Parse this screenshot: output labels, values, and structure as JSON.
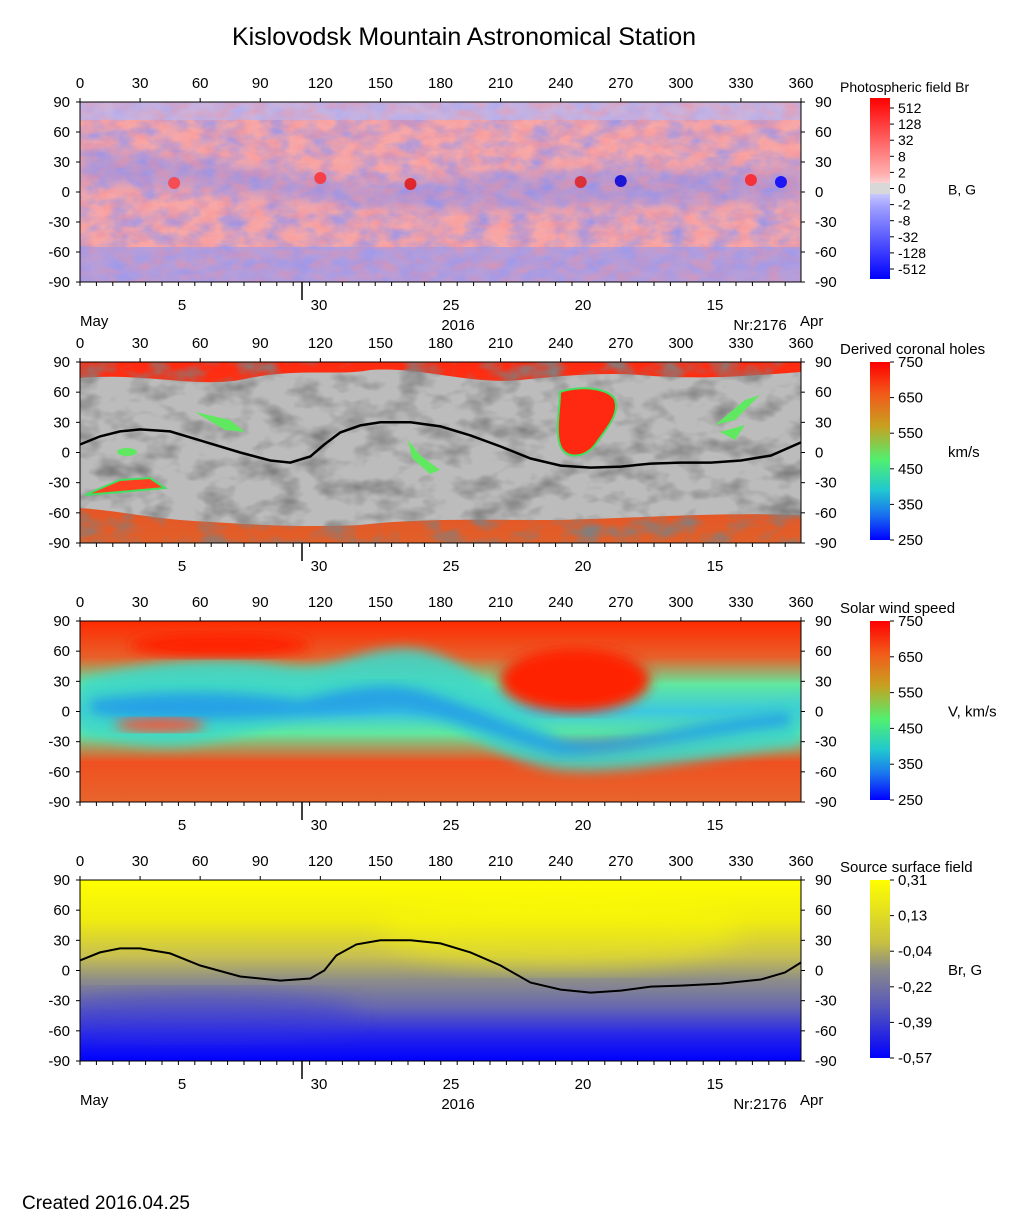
{
  "title": "Kislovodsk Mountain Astronomical Station",
  "footer": "Created  2016.04.25",
  "chart_data": [
    {
      "type": "heatmap",
      "title": "Photospheric field Br",
      "unit_label": "B, G",
      "x_ticks": [
        "0",
        "30",
        "60",
        "90",
        "120",
        "150",
        "180",
        "210",
        "240",
        "270",
        "300",
        "330",
        "360"
      ],
      "y_ticks": [
        "90",
        "60",
        "30",
        "0",
        "-30",
        "-60",
        "-90"
      ],
      "xlim": [
        0,
        360
      ],
      "ylim": [
        -90,
        90
      ],
      "date_ticks": [
        "5",
        "30",
        "25",
        "20",
        "15"
      ],
      "month_left": "May",
      "month_right": "Apr",
      "year": "2016",
      "rotation": "Nr:2176",
      "colorbar_ticks": [
        "512",
        "128",
        "32",
        "8",
        "2",
        "0",
        "-2",
        "-8",
        "-32",
        "-128",
        "-512"
      ],
      "colors": {
        "positive": "#ff0000",
        "negative": "#0000ff",
        "zero": "#d8d8d8"
      }
    },
    {
      "type": "heatmap",
      "title": "Derived coronal holes",
      "unit_label": "km/s",
      "x_ticks": [
        "0",
        "30",
        "60",
        "90",
        "120",
        "150",
        "180",
        "210",
        "240",
        "270",
        "300",
        "330",
        "360"
      ],
      "y_ticks": [
        "90",
        "60",
        "30",
        "0",
        "-30",
        "-60",
        "-90"
      ],
      "xlim": [
        0,
        360
      ],
      "ylim": [
        -90,
        90
      ],
      "date_ticks": [
        "5",
        "30",
        "25",
        "20",
        "15"
      ],
      "colorbar_ticks": [
        "750",
        "650",
        "550",
        "450",
        "350",
        "250"
      ],
      "colorbar_range": [
        250,
        750
      ],
      "neutral_line": [
        [
          0,
          8
        ],
        [
          10,
          16
        ],
        [
          20,
          21
        ],
        [
          30,
          23
        ],
        [
          45,
          21
        ],
        [
          60,
          12
        ],
        [
          80,
          0
        ],
        [
          95,
          -8
        ],
        [
          105,
          -10
        ],
        [
          115,
          -4
        ],
        [
          122,
          8
        ],
        [
          130,
          20
        ],
        [
          140,
          27
        ],
        [
          150,
          30
        ],
        [
          165,
          30
        ],
        [
          180,
          26
        ],
        [
          195,
          17
        ],
        [
          210,
          6
        ],
        [
          225,
          -6
        ],
        [
          240,
          -13
        ],
        [
          255,
          -15
        ],
        [
          270,
          -14
        ],
        [
          285,
          -11
        ],
        [
          300,
          -10
        ],
        [
          315,
          -10
        ],
        [
          330,
          -8
        ],
        [
          345,
          -3
        ],
        [
          360,
          10
        ]
      ]
    },
    {
      "type": "heatmap",
      "title": "Solar wind speed",
      "unit_label": "V, km/s",
      "x_ticks": [
        "0",
        "30",
        "60",
        "90",
        "120",
        "150",
        "180",
        "210",
        "240",
        "270",
        "300",
        "330",
        "360"
      ],
      "y_ticks": [
        "90",
        "60",
        "30",
        "0",
        "-30",
        "-60",
        "-90"
      ],
      "xlim": [
        0,
        360
      ],
      "ylim": [
        -90,
        90
      ],
      "date_ticks": [
        "5",
        "30",
        "25",
        "20",
        "15"
      ],
      "colorbar_ticks": [
        "750",
        "650",
        "550",
        "450",
        "350",
        "250"
      ],
      "colorbar_range": [
        250,
        750
      ]
    },
    {
      "type": "heatmap",
      "title": "Source surface field",
      "unit_label": "Br, G",
      "x_ticks": [
        "0",
        "30",
        "60",
        "90",
        "120",
        "150",
        "180",
        "210",
        "240",
        "270",
        "300",
        "330",
        "360"
      ],
      "y_ticks": [
        "90",
        "60",
        "30",
        "0",
        "-30",
        "-60",
        "-90"
      ],
      "xlim": [
        0,
        360
      ],
      "ylim": [
        -90,
        90
      ],
      "date_ticks": [
        "5",
        "30",
        "25",
        "20",
        "15"
      ],
      "month_left": "May",
      "month_right": "Apr",
      "year": "2016",
      "rotation": "Nr:2176",
      "colorbar_ticks": [
        "0,31",
        "0,13",
        "-0,04",
        "-0,22",
        "-0,39",
        "-0,57"
      ],
      "neutral_line": [
        [
          0,
          10
        ],
        [
          10,
          18
        ],
        [
          20,
          22
        ],
        [
          30,
          22
        ],
        [
          45,
          17
        ],
        [
          60,
          5
        ],
        [
          80,
          -6
        ],
        [
          100,
          -10
        ],
        [
          115,
          -8
        ],
        [
          122,
          0
        ],
        [
          128,
          15
        ],
        [
          138,
          26
        ],
        [
          150,
          30
        ],
        [
          165,
          30
        ],
        [
          180,
          27
        ],
        [
          195,
          18
        ],
        [
          210,
          5
        ],
        [
          225,
          -12
        ],
        [
          240,
          -19
        ],
        [
          255,
          -22
        ],
        [
          270,
          -20
        ],
        [
          285,
          -16
        ],
        [
          300,
          -15
        ],
        [
          320,
          -13
        ],
        [
          340,
          -9
        ],
        [
          352,
          -2
        ],
        [
          360,
          8
        ]
      ]
    }
  ]
}
